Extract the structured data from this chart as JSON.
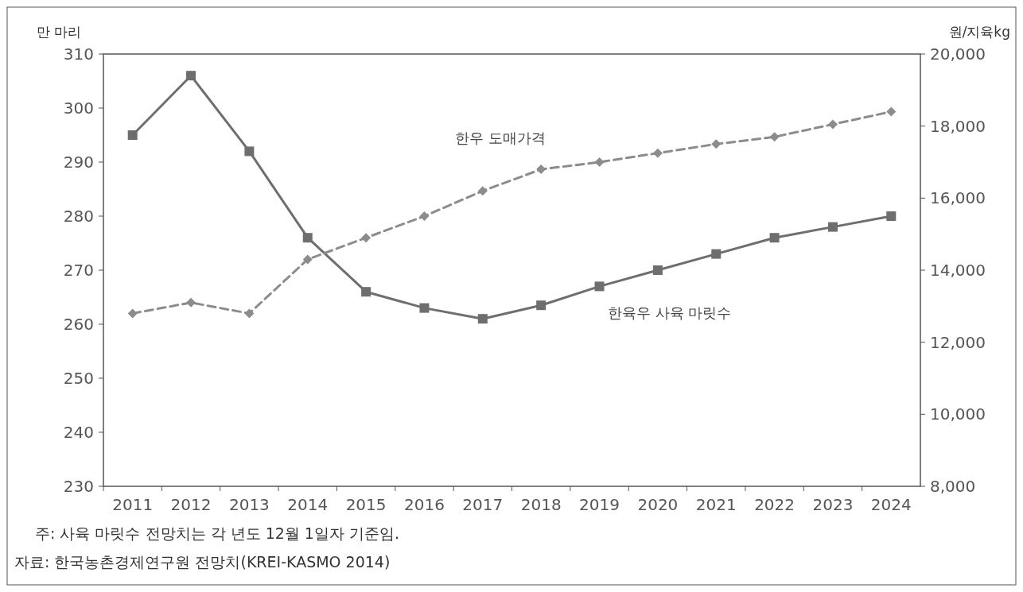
{
  "chart_data": {
    "type": "line",
    "categories": [
      "2011",
      "2012",
      "2013",
      "2014",
      "2015",
      "2016",
      "2017",
      "2018",
      "2019",
      "2020",
      "2021",
      "2022",
      "2023",
      "2024"
    ],
    "ylabel": "만 마리",
    "y2label": "원/지육kg",
    "ylim": [
      230,
      310
    ],
    "yticks": [
      230,
      240,
      250,
      260,
      270,
      280,
      290,
      300,
      310
    ],
    "y2lim": [
      8000,
      20000
    ],
    "y2ticks": [
      {
        "value": 8000,
        "label": "8,000"
      },
      {
        "value": 10000,
        "label": "10,000"
      },
      {
        "value": 12000,
        "label": "12,000"
      },
      {
        "value": 14000,
        "label": "14,000"
      },
      {
        "value": 16000,
        "label": "16,000"
      },
      {
        "value": 18000,
        "label": "18,000"
      },
      {
        "value": 20000,
        "label": "20,000"
      }
    ],
    "series": [
      {
        "name": "한육우 사육 마릿수",
        "color": "#6e6e6e",
        "marker": "square",
        "line_style": "solid",
        "values": [
          295,
          306,
          292,
          276,
          266,
          263,
          261,
          263.5,
          267,
          270,
          273,
          276,
          278,
          280
        ]
      },
      {
        "name": "한우 도매가격",
        "color": "#8c8c8c",
        "marker": "diamond",
        "line_style": "dashed",
        "axis": "y2",
        "values": [
          12800,
          13100,
          12800,
          14300,
          14900,
          15500,
          16200,
          16800,
          17000,
          17250,
          17500,
          17700,
          18050,
          18400
        ]
      }
    ],
    "grid": false,
    "annotations": [
      "주: 사육 마릿수 전망치는 각 년도 12월 1일자 기준임.",
      "자료: 한국농촌경제연구원 전망치(KREI-KASMO 2014)"
    ]
  }
}
